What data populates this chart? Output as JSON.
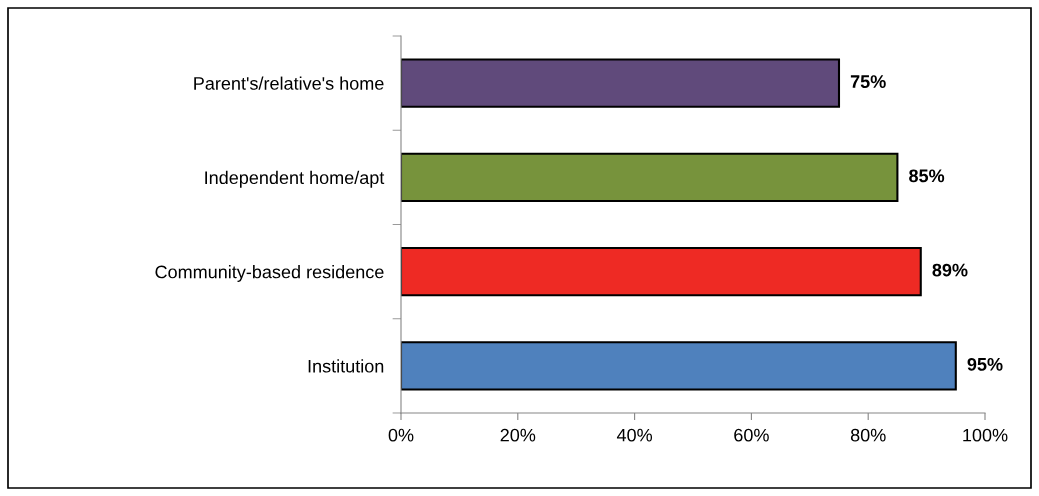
{
  "chart_data": {
    "type": "bar",
    "orientation": "horizontal",
    "categories": [
      "Parent's/relative's home",
      "Independent home/apt",
      "Community-based residence",
      "Institution"
    ],
    "values": [
      75,
      85,
      89,
      95
    ],
    "colors": [
      "#604a7b",
      "#77933c",
      "#ee2a24",
      "#4f81bd"
    ],
    "value_labels": [
      "75%",
      "85%",
      "89%",
      "95%"
    ],
    "xlim": [
      0,
      100
    ],
    "xticks": [
      {
        "value": 0,
        "label": "0%"
      },
      {
        "value": 20,
        "label": "20%"
      },
      {
        "value": 40,
        "label": "40%"
      },
      {
        "value": 60,
        "label": "60%"
      },
      {
        "value": 80,
        "label": "80%"
      },
      {
        "value": 100,
        "label": "100%"
      }
    ],
    "grid": false,
    "legend": false
  }
}
